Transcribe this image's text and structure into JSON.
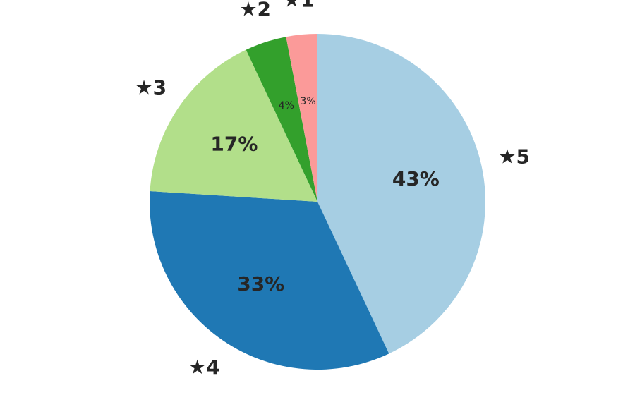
{
  "chart_data": {
    "type": "pie",
    "categories": [
      "★5",
      "★4",
      "★3",
      "★2",
      "★1"
    ],
    "values": [
      43,
      33,
      17,
      4,
      3
    ],
    "value_labels": [
      "43%",
      "33%",
      "17%",
      "4%",
      "3%"
    ],
    "colors": [
      "#a6cee3",
      "#1f78b4",
      "#b2df8a",
      "#33a02c",
      "#fb9a99"
    ],
    "start": "top",
    "direction": "clockwise"
  }
}
